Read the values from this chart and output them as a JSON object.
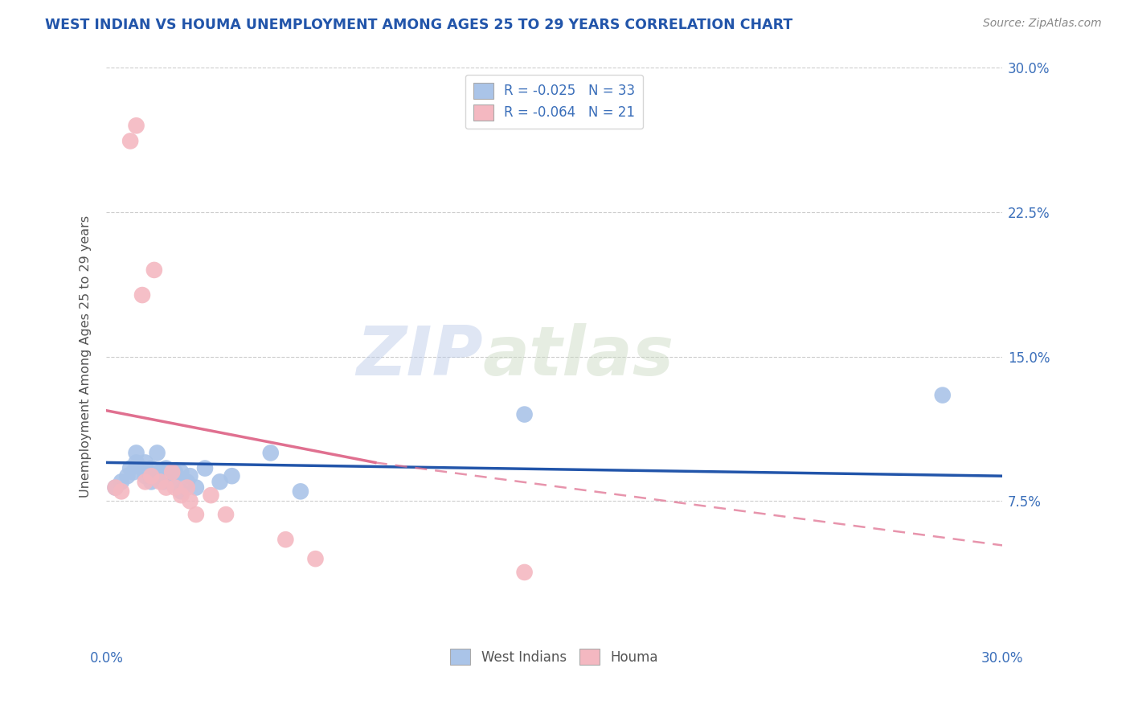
{
  "title": "WEST INDIAN VS HOUMA UNEMPLOYMENT AMONG AGES 25 TO 29 YEARS CORRELATION CHART",
  "source": "Source: ZipAtlas.com",
  "ylabel": "Unemployment Among Ages 25 to 29 years",
  "xlim": [
    0.0,
    0.3
  ],
  "ylim": [
    0.0,
    0.3
  ],
  "ytick_labels": [
    "7.5%",
    "15.0%",
    "22.5%",
    "30.0%"
  ],
  "ytick_positions": [
    0.075,
    0.15,
    0.225,
    0.3
  ],
  "grid_color": "#cccccc",
  "background_color": "#ffffff",
  "watermark_zip": "ZIP",
  "watermark_atlas": "atlas",
  "legend_r1": "R = -0.025",
  "legend_n1": "N = 33",
  "legend_r2": "R = -0.064",
  "legend_n2": "N = 21",
  "west_indian_color": "#aac4e8",
  "houma_color": "#f4b8c1",
  "west_indian_line_color": "#2255aa",
  "houma_line_color": "#e07090",
  "title_color": "#2255aa",
  "axis_label_color": "#555555",
  "tick_color": "#3b6fba",
  "wi_line_start_x": 0.0,
  "wi_line_start_y": 0.095,
  "wi_line_end_x": 0.3,
  "wi_line_end_y": 0.088,
  "ho_line_solid_start_x": 0.0,
  "ho_line_solid_start_y": 0.122,
  "ho_line_solid_end_x": 0.09,
  "ho_line_solid_end_y": 0.095,
  "ho_line_end_x": 0.3,
  "ho_line_end_y": 0.052,
  "west_indians_x": [
    0.003,
    0.005,
    0.007,
    0.008,
    0.009,
    0.01,
    0.01,
    0.012,
    0.013,
    0.013,
    0.014,
    0.015,
    0.015,
    0.016,
    0.017,
    0.018,
    0.019,
    0.02,
    0.02,
    0.022,
    0.023,
    0.025,
    0.025,
    0.027,
    0.028,
    0.03,
    0.033,
    0.038,
    0.042,
    0.055,
    0.065,
    0.14,
    0.28
  ],
  "west_indians_y": [
    0.082,
    0.085,
    0.088,
    0.092,
    0.09,
    0.095,
    0.1,
    0.092,
    0.088,
    0.095,
    0.09,
    0.085,
    0.092,
    0.088,
    0.1,
    0.09,
    0.085,
    0.088,
    0.092,
    0.085,
    0.09,
    0.08,
    0.09,
    0.085,
    0.088,
    0.082,
    0.092,
    0.085,
    0.088,
    0.1,
    0.08,
    0.12,
    0.13
  ],
  "houma_x": [
    0.003,
    0.005,
    0.008,
    0.01,
    0.012,
    0.013,
    0.015,
    0.016,
    0.018,
    0.02,
    0.022,
    0.023,
    0.025,
    0.027,
    0.028,
    0.03,
    0.035,
    0.04,
    0.06,
    0.07,
    0.14
  ],
  "houma_y": [
    0.082,
    0.08,
    0.262,
    0.27,
    0.182,
    0.085,
    0.088,
    0.195,
    0.085,
    0.082,
    0.09,
    0.082,
    0.078,
    0.082,
    0.075,
    0.068,
    0.078,
    0.068,
    0.055,
    0.045,
    0.038
  ]
}
